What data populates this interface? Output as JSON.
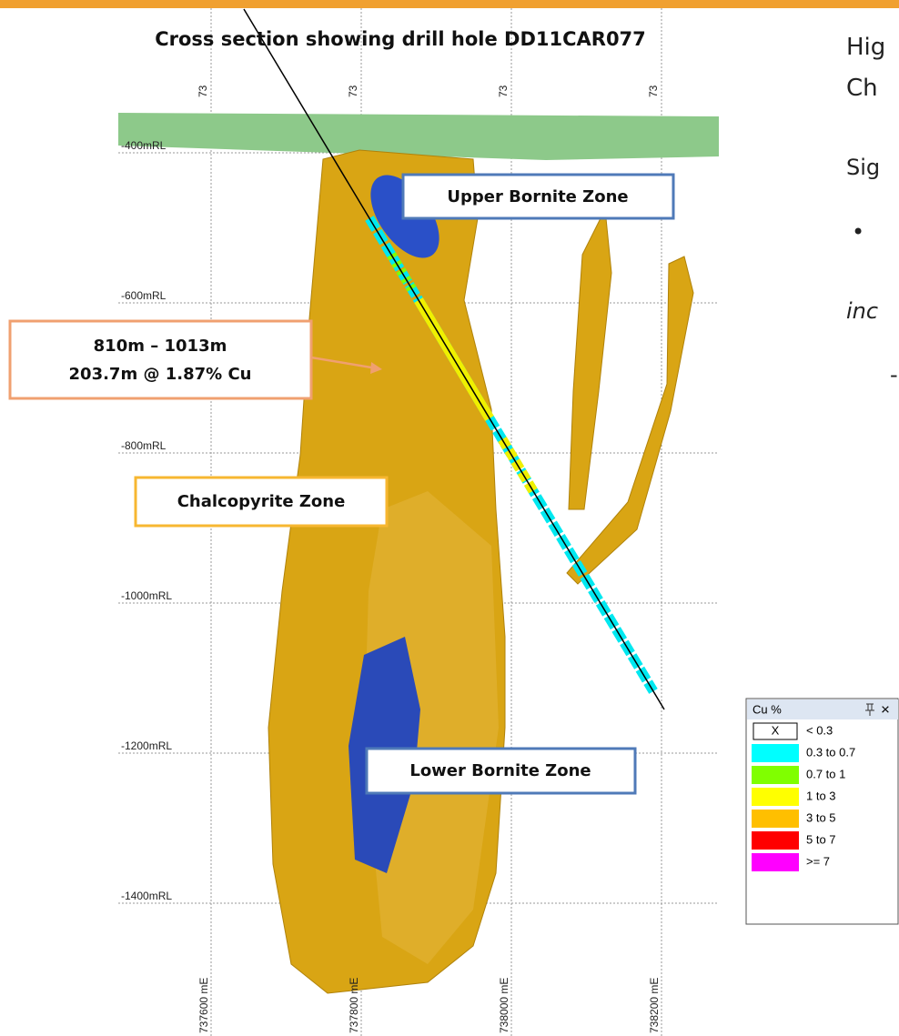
{
  "title": "Cross section showing drill hole DD11CAR077",
  "top_labels": [
    "73",
    "73",
    "73",
    "73"
  ],
  "rl_labels": [
    "-400mRL",
    "-600mRL",
    "-800mRL",
    "-1000mRL",
    "-1200mRL",
    "-1400mRL"
  ],
  "easting_labels": [
    "737600 mE",
    "737800 mE",
    "738000 mE",
    "738200 mE"
  ],
  "callouts": {
    "upper_bornite": "Upper Bornite Zone",
    "intercept": [
      "810m – 1013m",
      "203.7m @ 1.87% Cu"
    ],
    "chalcopyrite": "Chalcopyrite Zone",
    "lower_bornite": "Lower Bornite Zone"
  },
  "legend": {
    "title": "Cu %",
    "close": "×",
    "items": [
      {
        "swatch": "X",
        "label": "< 0.3"
      },
      {
        "label": "0.3 to 0.7",
        "color": "#00ffff"
      },
      {
        "label": "0.7 to 1",
        "color": "#80ff00"
      },
      {
        "label": "1 to 3",
        "color": "#ffff00"
      },
      {
        "label": "3 to 5",
        "color": "#ffbf00"
      },
      {
        "label": "5 to 7",
        "color": "#ff0000"
      },
      {
        "label": ">= 7",
        "color": "#ff00ff"
      }
    ]
  },
  "slide_text": [
    "Hig",
    "Ch",
    "Sig",
    "•",
    "inc",
    "-"
  ]
}
